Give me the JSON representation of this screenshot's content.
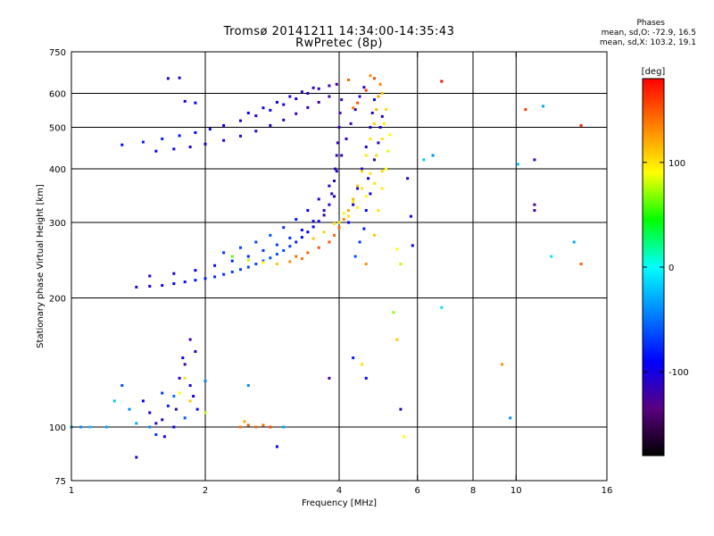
{
  "chart_data": {
    "type": "scatter",
    "title": "Tromsø 20141211 14:34:00-14:35:43",
    "subtitle": "RwPretec (8p)",
    "stats_header": "Phases",
    "stats_lines": [
      "mean, sd,O: -72.9, 16.5",
      "mean, sd,X: 103.2, 19.1"
    ],
    "xlabel": "Frequency [MHz]",
    "ylabel": "Stationary phase Virtual Height [km]",
    "xscale": "log",
    "yscale": "log",
    "xlim": [
      1,
      16
    ],
    "ylim": [
      75,
      750
    ],
    "xticks": [
      1,
      2,
      4,
      6,
      8,
      10,
      16
    ],
    "yticks": [
      75,
      100,
      200,
      300,
      400,
      500,
      600,
      750
    ],
    "grid": true,
    "colorbar": {
      "label": "[deg]",
      "range": [
        -180,
        180
      ],
      "ticks": [
        100,
        0,
        -100
      ],
      "colors": [
        "#000000",
        "#5a0080",
        "#0000ff",
        "#0080ff",
        "#00ffff",
        "#00ff00",
        "#ffff00",
        "#ff8000",
        "#ff0000"
      ]
    },
    "series": [
      {
        "points": [
          [
            1.4,
            212,
            -110
          ],
          [
            1.5,
            213,
            -100
          ],
          [
            1.6,
            214,
            -95
          ],
          [
            1.7,
            216,
            -90
          ],
          [
            1.8,
            218,
            -85
          ],
          [
            1.9,
            220,
            -80
          ],
          [
            2.0,
            222,
            -78
          ],
          [
            2.1,
            224,
            -75
          ],
          [
            2.2,
            227,
            -72
          ],
          [
            2.3,
            230,
            -70
          ],
          [
            2.4,
            233,
            -68
          ],
          [
            2.5,
            236,
            -66
          ],
          [
            2.6,
            240,
            -64
          ],
          [
            2.7,
            244,
            -62
          ],
          [
            2.8,
            248,
            -60
          ],
          [
            2.9,
            253,
            -60
          ],
          [
            3.0,
            258,
            -62
          ],
          [
            3.1,
            264,
            -70
          ],
          [
            3.2,
            270,
            -78
          ],
          [
            3.3,
            277,
            -85
          ],
          [
            3.4,
            285,
            -90
          ],
          [
            3.5,
            293,
            -95
          ],
          [
            3.6,
            302,
            -100
          ],
          [
            3.7,
            312,
            -105
          ],
          [
            3.8,
            330,
            -108
          ],
          [
            3.85,
            350,
            -110
          ],
          [
            3.9,
            375,
            -110
          ],
          [
            3.92,
            400,
            -112
          ],
          [
            3.95,
            430,
            -112
          ],
          [
            3.97,
            460,
            -115
          ],
          [
            4.0,
            500,
            -115
          ],
          [
            4.02,
            540,
            -118
          ],
          [
            4.05,
            580,
            -120
          ],
          [
            1.5,
            225,
            -105
          ],
          [
            1.7,
            228,
            -100
          ],
          [
            1.9,
            232,
            -95
          ],
          [
            2.1,
            238,
            -85
          ],
          [
            2.3,
            244,
            -80
          ],
          [
            2.5,
            250,
            -75
          ],
          [
            2.7,
            258,
            -70
          ],
          [
            2.9,
            266,
            -68
          ],
          [
            3.1,
            276,
            -75
          ],
          [
            3.3,
            288,
            -85
          ],
          [
            3.5,
            302,
            -95
          ],
          [
            3.7,
            320,
            -105
          ],
          [
            3.9,
            345,
            -110
          ],
          [
            2.2,
            255,
            -70
          ],
          [
            2.4,
            262,
            -68
          ],
          [
            2.6,
            270,
            -65
          ],
          [
            2.8,
            280,
            -62
          ],
          [
            3.0,
            292,
            -72
          ],
          [
            3.2,
            305,
            -82
          ],
          [
            3.4,
            320,
            -92
          ],
          [
            3.6,
            340,
            -100
          ],
          [
            3.8,
            365,
            -108
          ],
          [
            3.95,
            395,
            -112
          ],
          [
            4.05,
            430,
            -115
          ],
          [
            4.15,
            470,
            -115
          ],
          [
            4.25,
            510,
            -115
          ],
          [
            4.35,
            550,
            -112
          ],
          [
            4.45,
            590,
            -110
          ],
          [
            4.55,
            620,
            -108
          ],
          [
            4.2,
            300,
            -90
          ],
          [
            4.3,
            330,
            -100
          ],
          [
            4.4,
            360,
            -105
          ],
          [
            4.5,
            400,
            -110
          ],
          [
            4.6,
            450,
            -110
          ],
          [
            4.7,
            500,
            -108
          ],
          [
            4.75,
            540,
            -105
          ],
          [
            4.8,
            580,
            -100
          ],
          [
            1.3,
            455,
            -85
          ],
          [
            1.45,
            462,
            -80
          ],
          [
            1.6,
            470,
            -80
          ],
          [
            1.75,
            478,
            -85
          ],
          [
            1.9,
            486,
            -90
          ],
          [
            2.05,
            495,
            -95
          ],
          [
            2.2,
            505,
            -100
          ],
          [
            2.4,
            518,
            -100
          ],
          [
            2.6,
            532,
            -98
          ],
          [
            2.8,
            548,
            -95
          ],
          [
            3.0,
            565,
            -98
          ],
          [
            3.2,
            583,
            -105
          ],
          [
            3.4,
            600,
            -110
          ],
          [
            3.6,
            615,
            -115
          ],
          [
            3.8,
            625,
            -118
          ],
          [
            3.95,
            630,
            -120
          ],
          [
            1.55,
            440,
            -90
          ],
          [
            1.7,
            445,
            -95
          ],
          [
            1.85,
            450,
            -100
          ],
          [
            2.0,
            457,
            -100
          ],
          [
            2.2,
            466,
            -105
          ],
          [
            2.4,
            477,
            -108
          ],
          [
            2.6,
            490,
            -110
          ],
          [
            2.8,
            505,
            -112
          ],
          [
            3.0,
            520,
            -112
          ],
          [
            3.2,
            538,
            -115
          ],
          [
            3.4,
            556,
            -115
          ],
          [
            3.6,
            572,
            -118
          ],
          [
            3.8,
            590,
            -120
          ],
          [
            2.5,
            540,
            -90
          ],
          [
            2.7,
            555,
            -95
          ],
          [
            2.9,
            572,
            -100
          ],
          [
            3.1,
            590,
            -105
          ],
          [
            3.3,
            605,
            -110
          ],
          [
            3.5,
            618,
            -112
          ],
          [
            1.65,
            650,
            -110
          ],
          [
            1.75,
            652,
            -110
          ],
          [
            1.8,
            575,
            -100
          ],
          [
            1.9,
            570,
            -95
          ],
          [
            1.45,
            115,
            -90
          ],
          [
            1.5,
            108,
            -100
          ],
          [
            1.55,
            102,
            -110
          ],
          [
            1.6,
            120,
            -70
          ],
          [
            1.65,
            112,
            -80
          ],
          [
            1.7,
            100,
            -95
          ],
          [
            1.75,
            130,
            -110
          ],
          [
            1.8,
            140,
            -120
          ],
          [
            1.85,
            125,
            -100
          ],
          [
            1.9,
            150,
            -110
          ],
          [
            1.8,
            105,
            -60
          ],
          [
            1.7,
            118,
            -50
          ],
          [
            1.62,
            95,
            -100
          ],
          [
            1.55,
            96,
            -70
          ],
          [
            1.5,
            100,
            -40
          ],
          [
            1.4,
            102,
            -30
          ],
          [
            1.35,
            110,
            -40
          ],
          [
            1.3,
            125,
            -60
          ],
          [
            1.25,
            115,
            -20
          ],
          [
            1.2,
            100,
            -30
          ],
          [
            1.1,
            100,
            -20
          ],
          [
            1.05,
            100,
            -40
          ],
          [
            1.0,
            100,
            -30
          ],
          [
            1.85,
            160,
            -120
          ],
          [
            1.78,
            145,
            -90
          ],
          [
            1.88,
            118,
            -100
          ],
          [
            1.92,
            110,
            -85
          ],
          [
            1.4,
            85,
            -110
          ],
          [
            2.0,
            128,
            -40
          ],
          [
            1.6,
            104,
            -105
          ],
          [
            1.72,
            110,
            -115
          ],
          [
            4.35,
            250,
            -60
          ],
          [
            4.45,
            270,
            -70
          ],
          [
            4.55,
            290,
            -80
          ],
          [
            4.6,
            320,
            -90
          ],
          [
            4.7,
            350,
            -100
          ],
          [
            4.65,
            380,
            -105
          ],
          [
            4.8,
            420,
            -110
          ],
          [
            4.9,
            460,
            -108
          ],
          [
            4.95,
            500,
            -105
          ],
          [
            5.0,
            530,
            -100
          ],
          [
            5.7,
            380,
            -110
          ],
          [
            5.8,
            310,
            -100
          ],
          [
            5.85,
            265,
            -90
          ],
          [
            6.2,
            420,
            -20
          ],
          [
            6.5,
            430,
            -40
          ],
          [
            6.8,
            190,
            -10
          ],
          [
            9.7,
            105,
            -40
          ],
          [
            11.0,
            420,
            -120
          ],
          [
            11.0,
            330,
            -130
          ],
          [
            11.0,
            320,
            -120
          ],
          [
            10.1,
            410,
            -20
          ],
          [
            11.5,
            560,
            -30
          ],
          [
            12.0,
            250,
            -10
          ],
          [
            13.5,
            270,
            -30
          ],
          [
            3.8,
            130,
            -120
          ],
          [
            4.3,
            145,
            -80
          ],
          [
            4.6,
            130,
            -90
          ],
          [
            5.5,
            110,
            -110
          ],
          [
            3.0,
            100,
            -30
          ],
          [
            2.9,
            90,
            -90
          ],
          [
            2.5,
            125,
            -40
          ]
        ]
      },
      {
        "points": [
          [
            3.2,
            250,
            140
          ],
          [
            3.4,
            255,
            145
          ],
          [
            3.6,
            262,
            150
          ],
          [
            3.8,
            270,
            150
          ],
          [
            3.9,
            280,
            145
          ],
          [
            4.0,
            292,
            140
          ],
          [
            4.1,
            305,
            130
          ],
          [
            4.2,
            320,
            120
          ],
          [
            4.3,
            340,
            115
          ],
          [
            4.4,
            365,
            110
          ],
          [
            4.5,
            395,
            105
          ],
          [
            4.6,
            430,
            100
          ],
          [
            4.7,
            470,
            100
          ],
          [
            4.8,
            510,
            105
          ],
          [
            4.85,
            550,
            115
          ],
          [
            4.9,
            590,
            125
          ],
          [
            4.95,
            630,
            135
          ],
          [
            3.5,
            275,
            110
          ],
          [
            3.7,
            285,
            105
          ],
          [
            3.9,
            298,
            100
          ],
          [
            4.1,
            315,
            95
          ],
          [
            4.3,
            335,
            95
          ],
          [
            4.5,
            360,
            98
          ],
          [
            4.7,
            390,
            100
          ],
          [
            4.85,
            430,
            105
          ],
          [
            5.0,
            470,
            100
          ],
          [
            5.05,
            510,
            95
          ],
          [
            5.1,
            550,
            105
          ],
          [
            5.0,
            600,
            110
          ],
          [
            4.6,
            240,
            130
          ],
          [
            4.8,
            280,
            110
          ],
          [
            4.9,
            320,
            100
          ],
          [
            5.0,
            360,
            95
          ],
          [
            5.1,
            400,
            90
          ],
          [
            5.15,
            440,
            85
          ],
          [
            5.2,
            480,
            90
          ],
          [
            4.0,
            300,
            95
          ],
          [
            4.2,
            310,
            100
          ],
          [
            4.4,
            325,
            95
          ],
          [
            4.6,
            345,
            92
          ],
          [
            4.8,
            370,
            98
          ],
          [
            5.0,
            395,
            102
          ],
          [
            2.3,
            250,
            60
          ],
          [
            2.5,
            245,
            80
          ],
          [
            2.7,
            242,
            90
          ],
          [
            2.9,
            240,
            110
          ],
          [
            3.1,
            243,
            130
          ],
          [
            3.3,
            247,
            140
          ],
          [
            2.4,
            100,
            140
          ],
          [
            2.5,
            101,
            150
          ],
          [
            2.6,
            100,
            145
          ],
          [
            2.7,
            101,
            140
          ],
          [
            2.8,
            100,
            155
          ],
          [
            2.45,
            103,
            120
          ],
          [
            1.8,
            130,
            100
          ],
          [
            1.85,
            115,
            110
          ],
          [
            1.75,
            120,
            90
          ],
          [
            2.0,
            108,
            80
          ],
          [
            4.3,
            555,
            140
          ],
          [
            4.4,
            570,
            150
          ],
          [
            4.6,
            610,
            160
          ],
          [
            4.8,
            650,
            155
          ],
          [
            4.7,
            660,
            130
          ],
          [
            4.2,
            645,
            145
          ],
          [
            5.4,
            260,
            90
          ],
          [
            5.5,
            240,
            80
          ],
          [
            5.3,
            185,
            70
          ],
          [
            4.5,
            140,
            100
          ],
          [
            5.6,
            95,
            90
          ],
          [
            5.4,
            160,
            110
          ],
          [
            9.3,
            140,
            130
          ],
          [
            10.5,
            550,
            160
          ],
          [
            6.8,
            640,
            175
          ],
          [
            14.0,
            505,
            170
          ],
          [
            14.0,
            240,
            150
          ]
        ]
      }
    ]
  }
}
